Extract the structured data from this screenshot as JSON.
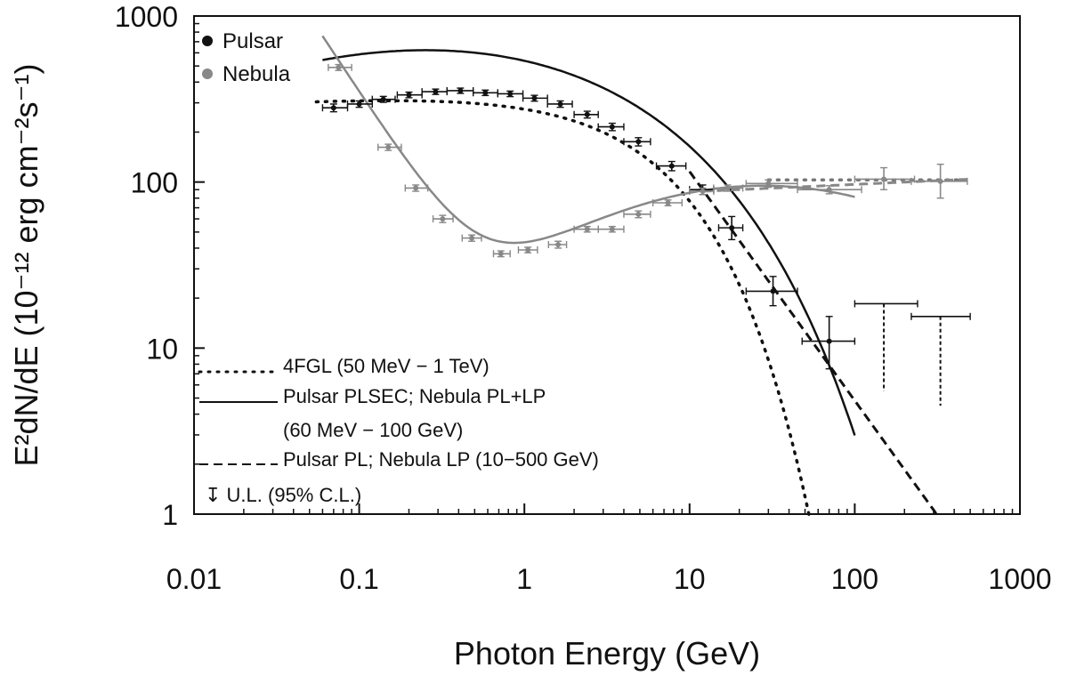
{
  "chart_data": {
    "type": "scatter",
    "xlabel": "Photon Energy (GeV)",
    "ylabel": "E²dN/dE (10⁻¹² erg cm⁻²s⁻¹)",
    "xscale": "log",
    "yscale": "log",
    "xlim": [
      0.01,
      1000
    ],
    "ylim": [
      1,
      1000
    ],
    "x_ticks": [
      0.01,
      0.1,
      1,
      10,
      100,
      1000
    ],
    "x_tick_labels": [
      "0.01",
      "0.1",
      "1",
      "10",
      "100",
      "1000"
    ],
    "y_ticks": [
      1,
      10,
      100,
      1000
    ],
    "y_tick_labels": [
      "1",
      "10",
      "100",
      "1000"
    ],
    "grid": false,
    "legend_top": {
      "placement": "top-left",
      "entries": [
        {
          "label": "Pulsar",
          "color": "#111111"
        },
        {
          "label": "Nebula",
          "color": "#888888"
        }
      ]
    },
    "legend_bottom": {
      "placement": "bottom-left",
      "entries": [
        {
          "label": "4FGL (50 MeV − 1 TeV)",
          "style": "dotted"
        },
        {
          "label": "Pulsar PLSEC; Nebula PL+LP",
          "label2": "(60 MeV − 100 GeV)",
          "style": "solid"
        },
        {
          "label": "Pulsar PL; Nebula LP (10−500 GeV)",
          "style": "dashed"
        },
        {
          "label": "↧ U.L. (95% C.L.)",
          "style": "none"
        }
      ]
    },
    "series": [
      {
        "name": "Pulsar",
        "color": "#111111",
        "points": [
          {
            "x": 0.07,
            "y": 280,
            "xlo": 0.06,
            "xhi": 0.085,
            "ylo": 265,
            "yhi": 295
          },
          {
            "x": 0.1,
            "y": 295,
            "xlo": 0.085,
            "xhi": 0.12,
            "ylo": 282,
            "yhi": 308
          },
          {
            "x": 0.14,
            "y": 315,
            "xlo": 0.12,
            "xhi": 0.165,
            "ylo": 302,
            "yhi": 328
          },
          {
            "x": 0.2,
            "y": 335,
            "xlo": 0.17,
            "xhi": 0.24,
            "ylo": 322,
            "yhi": 348
          },
          {
            "x": 0.29,
            "y": 350,
            "xlo": 0.24,
            "xhi": 0.34,
            "ylo": 337,
            "yhi": 363
          },
          {
            "x": 0.41,
            "y": 355,
            "xlo": 0.34,
            "xhi": 0.49,
            "ylo": 342,
            "yhi": 368
          },
          {
            "x": 0.58,
            "y": 345,
            "xlo": 0.49,
            "xhi": 0.69,
            "ylo": 332,
            "yhi": 358
          },
          {
            "x": 0.82,
            "y": 340,
            "xlo": 0.69,
            "xhi": 0.98,
            "ylo": 327,
            "yhi": 353
          },
          {
            "x": 1.15,
            "y": 320,
            "xlo": 0.98,
            "xhi": 1.38,
            "ylo": 307,
            "yhi": 333
          },
          {
            "x": 1.65,
            "y": 295,
            "xlo": 1.38,
            "xhi": 1.95,
            "ylo": 282,
            "yhi": 308
          },
          {
            "x": 2.4,
            "y": 255,
            "xlo": 2.0,
            "xhi": 2.8,
            "ylo": 243,
            "yhi": 267
          },
          {
            "x": 3.4,
            "y": 215,
            "xlo": 2.8,
            "xhi": 4.0,
            "ylo": 204,
            "yhi": 226
          },
          {
            "x": 4.9,
            "y": 175,
            "xlo": 4.0,
            "xhi": 5.8,
            "ylo": 165,
            "yhi": 185
          },
          {
            "x": 7.8,
            "y": 125,
            "xlo": 6.3,
            "xhi": 9.5,
            "ylo": 117,
            "yhi": 133
          },
          {
            "x": 12,
            "y": 90,
            "xlo": 10,
            "xhi": 14,
            "ylo": 84,
            "yhi": 96
          },
          {
            "x": 18,
            "y": 53,
            "xlo": 15,
            "xhi": 21,
            "ylo": 45,
            "yhi": 62
          },
          {
            "x": 32,
            "y": 22,
            "xlo": 22,
            "xhi": 45,
            "ylo": 18,
            "yhi": 27
          },
          {
            "x": 70,
            "y": 11,
            "xlo": 48,
            "xhi": 100,
            "ylo": 7.5,
            "yhi": 15.5
          }
        ],
        "upper_limits": [
          {
            "x": 150,
            "y": 18.5,
            "xlo": 100,
            "xhi": 240,
            "ybottom": 5.5
          },
          {
            "x": 330,
            "y": 15.5,
            "xlo": 220,
            "xhi": 500,
            "ybottom": 4.5
          }
        ]
      },
      {
        "name": "Nebula",
        "color": "#888888",
        "points": [
          {
            "x": 0.075,
            "y": 490,
            "xlo": 0.065,
            "xhi": 0.09,
            "ylo": 470,
            "yhi": 510
          },
          {
            "x": 0.15,
            "y": 162,
            "xlo": 0.13,
            "xhi": 0.18,
            "ylo": 155,
            "yhi": 169
          },
          {
            "x": 0.22,
            "y": 92,
            "xlo": 0.19,
            "xhi": 0.26,
            "ylo": 88,
            "yhi": 96
          },
          {
            "x": 0.32,
            "y": 60,
            "xlo": 0.28,
            "xhi": 0.37,
            "ylo": 57,
            "yhi": 63
          },
          {
            "x": 0.48,
            "y": 46,
            "xlo": 0.42,
            "xhi": 0.55,
            "ylo": 44,
            "yhi": 48
          },
          {
            "x": 0.72,
            "y": 37,
            "xlo": 0.65,
            "xhi": 0.82,
            "ylo": 35.5,
            "yhi": 38.5
          },
          {
            "x": 1.05,
            "y": 39,
            "xlo": 0.92,
            "xhi": 1.2,
            "ylo": 37.5,
            "yhi": 40.5
          },
          {
            "x": 1.6,
            "y": 42,
            "xlo": 1.4,
            "xhi": 1.8,
            "ylo": 40,
            "yhi": 44
          },
          {
            "x": 2.4,
            "y": 52,
            "xlo": 2.0,
            "xhi": 2.8,
            "ylo": 50,
            "yhi": 54
          },
          {
            "x": 3.4,
            "y": 52,
            "xlo": 2.8,
            "xhi": 4.0,
            "ylo": 50,
            "yhi": 54
          },
          {
            "x": 4.9,
            "y": 64,
            "xlo": 4.0,
            "xhi": 5.8,
            "ylo": 61,
            "yhi": 67
          },
          {
            "x": 7.4,
            "y": 75,
            "xlo": 6.0,
            "xhi": 9.0,
            "ylo": 72,
            "yhi": 78
          },
          {
            "x": 12,
            "y": 88,
            "xlo": 10,
            "xhi": 14,
            "ylo": 84,
            "yhi": 92
          },
          {
            "x": 17,
            "y": 92,
            "xlo": 14,
            "xhi": 21,
            "ylo": 88,
            "yhi": 96
          },
          {
            "x": 30,
            "y": 98,
            "xlo": 22,
            "xhi": 45,
            "ylo": 93,
            "yhi": 103
          },
          {
            "x": 70,
            "y": 90,
            "xlo": 45,
            "xhi": 110,
            "ylo": 85,
            "yhi": 95
          },
          {
            "x": 150,
            "y": 104,
            "xlo": 100,
            "xhi": 230,
            "ylo": 90,
            "yhi": 122
          },
          {
            "x": 330,
            "y": 101,
            "xlo": 220,
            "xhi": 480,
            "ylo": 80,
            "yhi": 128
          }
        ]
      }
    ]
  }
}
